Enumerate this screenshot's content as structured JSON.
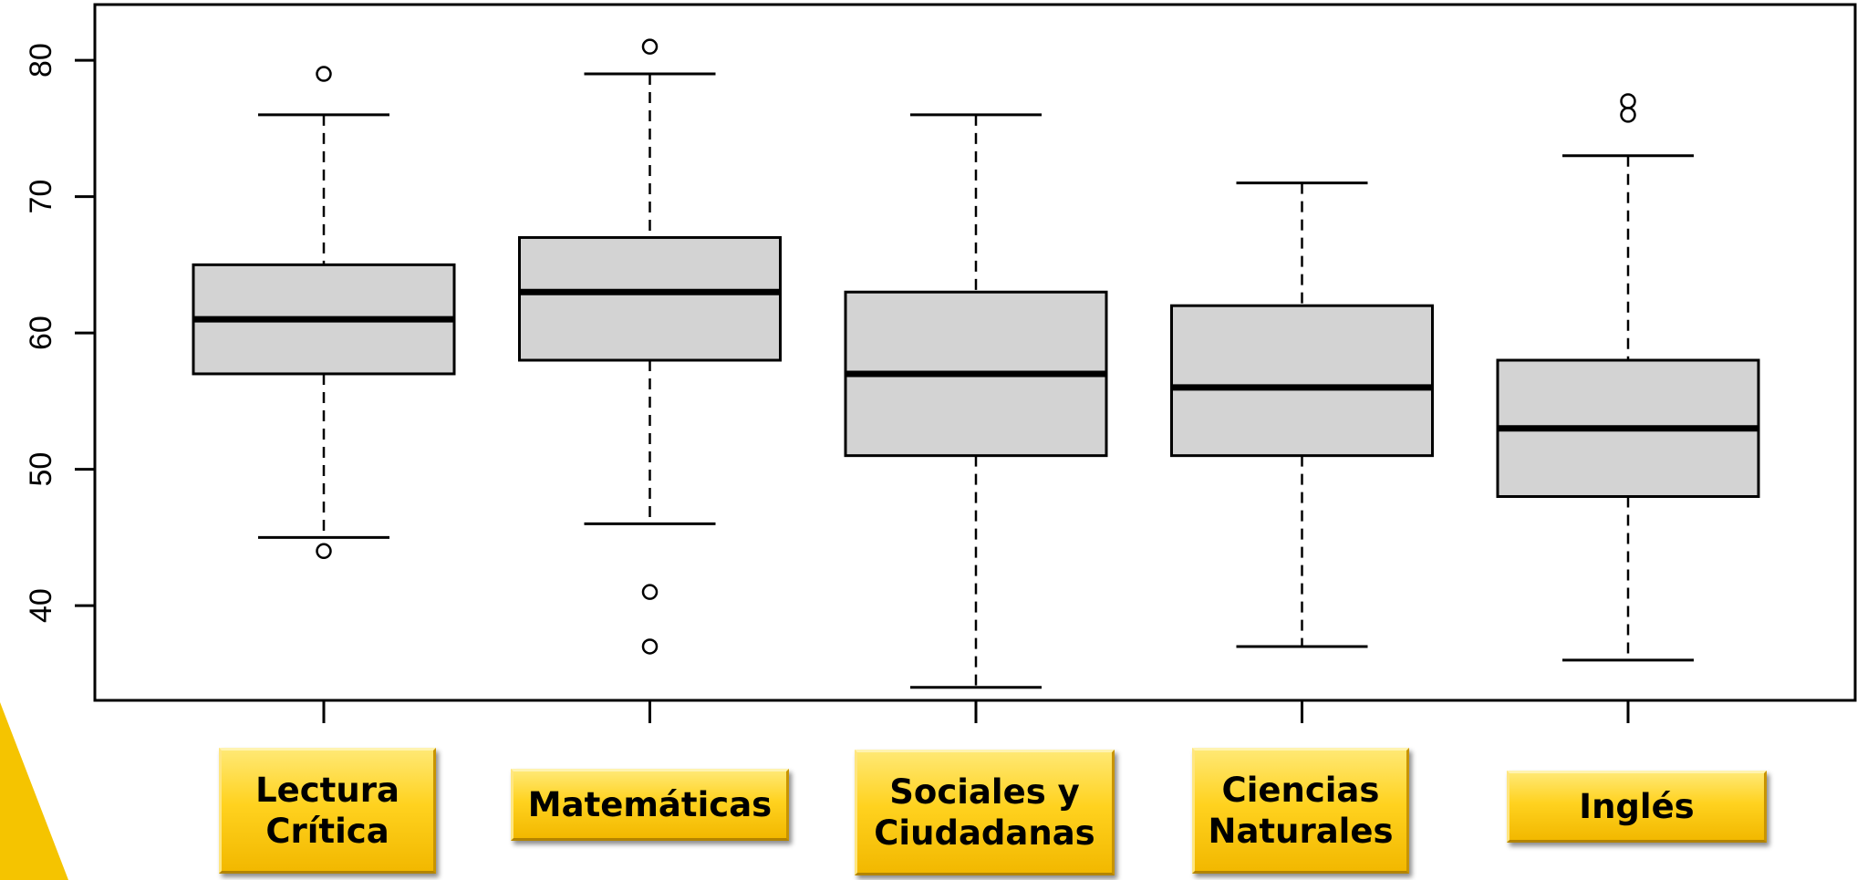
{
  "colors": {
    "box_fill": "#d3d3d3",
    "stroke": "#000000",
    "label_gold": "#ffd21f",
    "decor_yellow": "#f5c400"
  },
  "chart_data": {
    "type": "boxplot",
    "title": "",
    "xlabel": "",
    "ylabel": "",
    "ylim": [
      33,
      84
    ],
    "yticks": [
      40,
      50,
      60,
      70,
      80
    ],
    "grid": false,
    "categories": [
      "Lectura\nCrítica",
      "Matemáticas",
      "Sociales y\nCiudadanas",
      "Ciencias\nNaturales",
      "Inglés"
    ],
    "boxes": [
      {
        "whisker_low": 45,
        "q1": 57,
        "median": 61,
        "q3": 65,
        "whisker_high": 76,
        "outliers": [
          44,
          79
        ]
      },
      {
        "whisker_low": 46,
        "q1": 58,
        "median": 63,
        "q3": 67,
        "whisker_high": 79,
        "outliers": [
          37,
          41,
          81
        ]
      },
      {
        "whisker_low": 34,
        "q1": 51,
        "median": 57,
        "q3": 63,
        "whisker_high": 76,
        "outliers": []
      },
      {
        "whisker_low": 37,
        "q1": 51,
        "median": 56,
        "q3": 62,
        "whisker_high": 71,
        "outliers": []
      },
      {
        "whisker_low": 36,
        "q1": 48,
        "median": 53,
        "q3": 58,
        "whisker_high": 73,
        "outliers": [
          76,
          77
        ]
      }
    ]
  }
}
